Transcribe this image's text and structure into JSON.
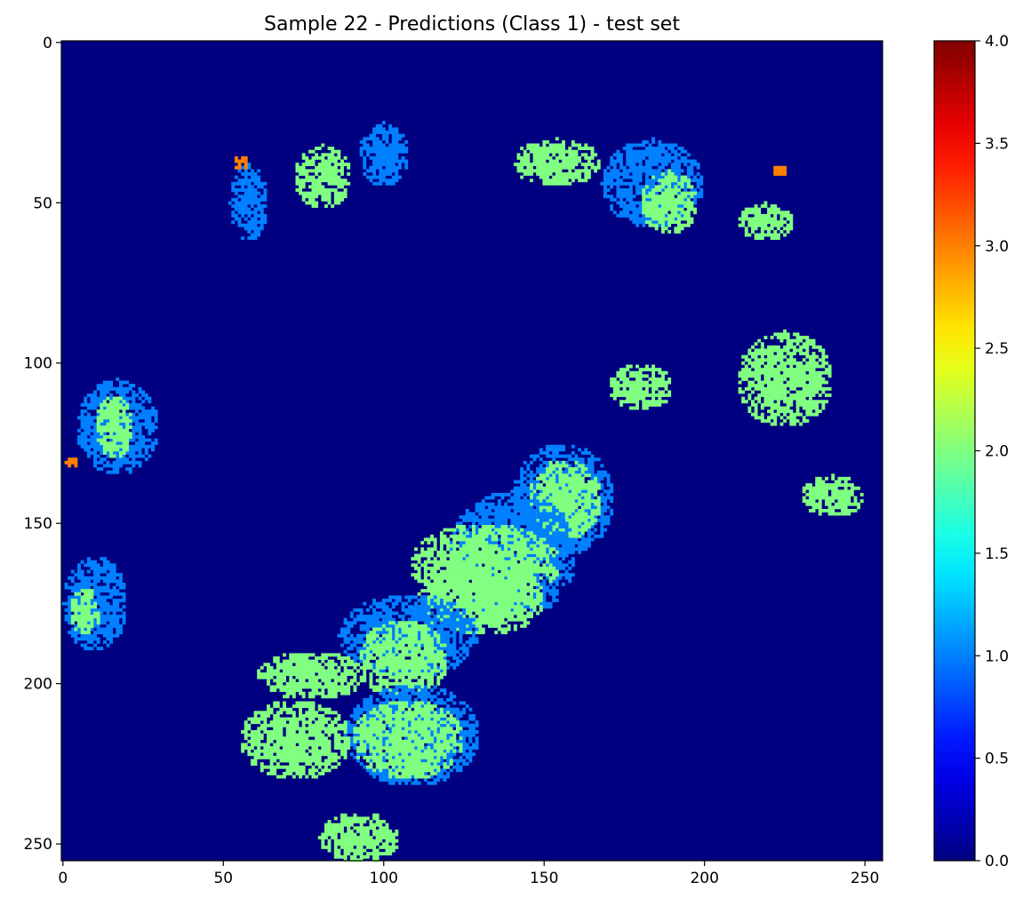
{
  "chart_data": {
    "type": "heatmap",
    "title": "Sample 22 - Predictions (Class 1) - test set",
    "xlabel": "",
    "ylabel": "",
    "grid": false,
    "colormap": "jet",
    "xlim": [
      0,
      255
    ],
    "ylim": [
      255,
      0
    ],
    "x_ticks": [
      0,
      50,
      100,
      150,
      200,
      250
    ],
    "x_tick_labels": [
      "0",
      "50",
      "100",
      "150",
      "200",
      "250"
    ],
    "y_ticks": [
      0,
      50,
      100,
      150,
      200,
      250
    ],
    "y_tick_labels": [
      "0",
      "50",
      "100",
      "150",
      "200",
      "250"
    ],
    "colorbar": {
      "range": [
        0.0,
        4.0
      ],
      "ticks": [
        0.0,
        0.5,
        1.0,
        1.5,
        2.0,
        2.5,
        3.0,
        3.5,
        4.0
      ],
      "tick_labels": [
        "0.0",
        "0.5",
        "1.0",
        "1.5",
        "2.0",
        "2.5",
        "3.0",
        "3.5",
        "4.0"
      ]
    },
    "matrix_size": [
      256,
      256
    ],
    "background_value": 0,
    "class_values": [
      0,
      1,
      2,
      3
    ],
    "regions": [
      {
        "value": 1,
        "x": [
          4,
          30
        ],
        "y": [
          105,
          135
        ]
      },
      {
        "value": 2,
        "x": [
          10,
          22
        ],
        "y": [
          110,
          130
        ]
      },
      {
        "value": 1,
        "x": [
          52,
          64
        ],
        "y": [
          38,
          62
        ]
      },
      {
        "value": 2,
        "x": [
          72,
          90
        ],
        "y": [
          32,
          52
        ]
      },
      {
        "value": 1,
        "x": [
          92,
          108
        ],
        "y": [
          25,
          45
        ]
      },
      {
        "value": 2,
        "x": [
          140,
          168
        ],
        "y": [
          30,
          45
        ]
      },
      {
        "value": 1,
        "x": [
          168,
          200
        ],
        "y": [
          30,
          58
        ]
      },
      {
        "value": 2,
        "x": [
          180,
          198
        ],
        "y": [
          40,
          60
        ]
      },
      {
        "value": 2,
        "x": [
          210,
          228
        ],
        "y": [
          50,
          62
        ]
      },
      {
        "value": 2,
        "x": [
          210,
          240
        ],
        "y": [
          90,
          120
        ]
      },
      {
        "value": 2,
        "x": [
          170,
          190
        ],
        "y": [
          100,
          115
        ]
      },
      {
        "value": 1,
        "x": [
          140,
          172
        ],
        "y": [
          125,
          160
        ]
      },
      {
        "value": 2,
        "x": [
          145,
          168
        ],
        "y": [
          130,
          155
        ]
      },
      {
        "value": 1,
        "x": [
          120,
          160
        ],
        "y": [
          140,
          180
        ]
      },
      {
        "value": 2,
        "x": [
          108,
          155
        ],
        "y": [
          150,
          175
        ]
      },
      {
        "value": 2,
        "x": [
          110,
          150
        ],
        "y": [
          165,
          185
        ]
      },
      {
        "value": 1,
        "x": [
          86,
          130
        ],
        "y": [
          172,
          198
        ]
      },
      {
        "value": 2,
        "x": [
          92,
          120
        ],
        "y": [
          180,
          205
        ]
      },
      {
        "value": 1,
        "x": [
          88,
          130
        ],
        "y": [
          200,
          232
        ]
      },
      {
        "value": 2,
        "x": [
          90,
          125
        ],
        "y": [
          205,
          230
        ]
      },
      {
        "value": 2,
        "x": [
          55,
          90
        ],
        "y": [
          205,
          230
        ]
      },
      {
        "value": 2,
        "x": [
          60,
          95
        ],
        "y": [
          190,
          205
        ]
      },
      {
        "value": 2,
        "x": [
          80,
          105
        ],
        "y": [
          240,
          256
        ]
      },
      {
        "value": 1,
        "x": [
          0,
          20
        ],
        "y": [
          160,
          190
        ]
      },
      {
        "value": 2,
        "x": [
          2,
          12
        ],
        "y": [
          170,
          185
        ]
      },
      {
        "value": 2,
        "x": [
          230,
          250
        ],
        "y": [
          135,
          148
        ]
      },
      {
        "value": 3,
        "x": [
          53,
          58
        ],
        "y": [
          35,
          40
        ]
      },
      {
        "value": 3,
        "x": [
          221,
          226
        ],
        "y": [
          38,
          42
        ]
      },
      {
        "value": 3,
        "x": [
          0,
          5
        ],
        "y": [
          129,
          133
        ]
      }
    ]
  }
}
